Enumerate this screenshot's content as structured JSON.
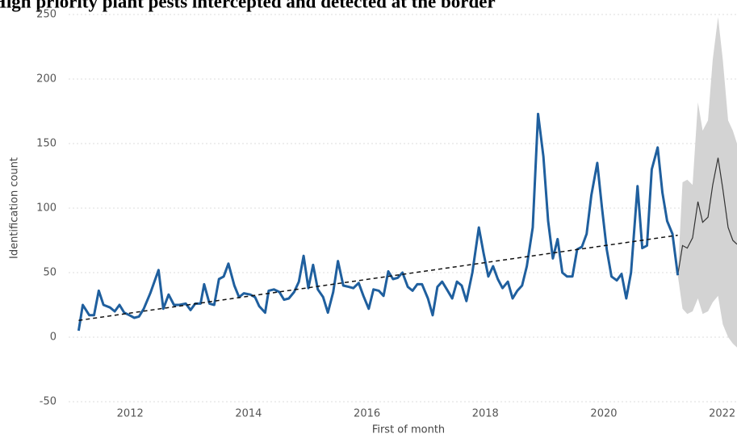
{
  "chart_data": {
    "type": "line",
    "title": "High priority plant pests intercepted and detected at the border",
    "x_label": "First of month",
    "y_label": "Identification count",
    "xlim": [
      2010.62,
      2022.25
    ],
    "ylim": [
      -50,
      250
    ],
    "xticks": [
      2012,
      2014,
      2016,
      2018,
      2020,
      2022
    ],
    "yticks": [
      -50,
      0,
      50,
      100,
      150,
      200,
      250
    ],
    "grid": true,
    "observed": {
      "color": "#1f5f9e",
      "x": [
        2011.13,
        2011.2,
        2011.31,
        2011.39,
        2011.47,
        2011.55,
        2011.66,
        2011.74,
        2011.82,
        2011.9,
        2011.99,
        2012.07,
        2012.15,
        2012.23,
        2012.34,
        2012.48,
        2012.56,
        2012.65,
        2012.74,
        2012.83,
        2012.94,
        2013.02,
        2013.1,
        2013.19,
        2013.25,
        2013.34,
        2013.42,
        2013.5,
        2013.58,
        2013.66,
        2013.76,
        2013.84,
        2013.92,
        2014.03,
        2014.11,
        2014.18,
        2014.28,
        2014.34,
        2014.43,
        2014.52,
        2014.6,
        2014.68,
        2014.77,
        2014.85,
        2014.93,
        2015.01,
        2015.09,
        2015.17,
        2015.26,
        2015.34,
        2015.43,
        2015.51,
        2015.6,
        2015.69,
        2015.77,
        2015.86,
        2015.94,
        2016.03,
        2016.11,
        2016.2,
        2016.28,
        2016.36,
        2016.44,
        2016.52,
        2016.6,
        2016.69,
        2016.77,
        2016.85,
        2016.93,
        2017.03,
        2017.11,
        2017.19,
        2017.27,
        2017.35,
        2017.44,
        2017.52,
        2017.6,
        2017.68,
        2017.78,
        2017.89,
        2017.97,
        2018.05,
        2018.13,
        2018.21,
        2018.29,
        2018.38,
        2018.46,
        2018.54,
        2018.62,
        2018.7,
        2018.8,
        2018.89,
        2018.98,
        2019.06,
        2019.14,
        2019.22,
        2019.3,
        2019.38,
        2019.47,
        2019.55,
        2019.63,
        2019.71,
        2019.79,
        2019.89,
        2019.97,
        2020.05,
        2020.13,
        2020.22,
        2020.3,
        2020.38,
        2020.46,
        2020.57,
        2020.65,
        2020.73,
        2020.81,
        2020.91,
        2020.99,
        2021.07,
        2021.16,
        2021.25
      ],
      "values": [
        5,
        25,
        17,
        17,
        36,
        25,
        23,
        20,
        25,
        19,
        17,
        15,
        16,
        22,
        34,
        52,
        22,
        33,
        25,
        25,
        26,
        21,
        26,
        26,
        41,
        26,
        25,
        45,
        47,
        57,
        40,
        31,
        34,
        33,
        31,
        24,
        19,
        36,
        37,
        35,
        29,
        30,
        35,
        43,
        63,
        38,
        56,
        37,
        31,
        19,
        35,
        59,
        40,
        39,
        38,
        42,
        32,
        22,
        37,
        36,
        32,
        51,
        45,
        46,
        50,
        39,
        36,
        41,
        41,
        30,
        17,
        39,
        43,
        37,
        30,
        43,
        40,
        28,
        50,
        85,
        65,
        47,
        55,
        45,
        38,
        43,
        30,
        36,
        40,
        55,
        85,
        173,
        140,
        90,
        61,
        76,
        50,
        47,
        47,
        68,
        70,
        80,
        110,
        135,
        100,
        68,
        47,
        44,
        49,
        30,
        50,
        117,
        69,
        71,
        130,
        147,
        112,
        90,
        80,
        48
      ]
    },
    "forecast": {
      "color": "#333333",
      "band_color": "#d3d3d3",
      "x": [
        2021.25,
        2021.33,
        2021.41,
        2021.5,
        2021.59,
        2021.67,
        2021.76,
        2021.84,
        2021.93,
        2022.01,
        2022.1,
        2022.18,
        2022.25
      ],
      "values": [
        48,
        71,
        69,
        77,
        105,
        89,
        93,
        118,
        139,
        115,
        85,
        75,
        72
      ],
      "upper": [
        48,
        120,
        122,
        118,
        182,
        160,
        168,
        215,
        248,
        215,
        168,
        160,
        150
      ],
      "lower": [
        48,
        22,
        18,
        20,
        30,
        18,
        20,
        27,
        32,
        10,
        0,
        -5,
        -8
      ]
    },
    "trend": {
      "color": "#111111",
      "x": [
        2011.13,
        2021.25
      ],
      "values": [
        13,
        79
      ]
    }
  }
}
